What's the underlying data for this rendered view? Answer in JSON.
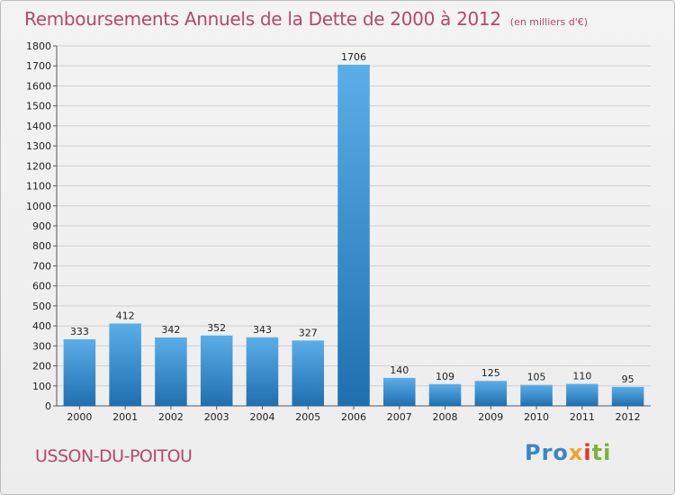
{
  "header": {
    "title": "Remboursements Annuels de la Dette de 2000 à 2012",
    "unit": "(en milliers d'€)"
  },
  "footer": {
    "commune": "USSON-DU-POITOU",
    "logo": "Proxiti"
  },
  "colors": {
    "title": "#b5486b",
    "bar_light": "#5aaee8",
    "bar_dark": "#1f6fb0",
    "grid": "#cfcfcf"
  },
  "chart_data": {
    "type": "bar",
    "title": "Remboursements Annuels de la Dette de 2000 à 2012",
    "subtitle": "(en milliers d'€)",
    "xlabel": "",
    "ylabel": "",
    "categories": [
      "2000",
      "2001",
      "2002",
      "2003",
      "2004",
      "2005",
      "2006",
      "2007",
      "2008",
      "2009",
      "2010",
      "2011",
      "2012"
    ],
    "values": [
      333,
      412,
      342,
      352,
      343,
      327,
      1706,
      140,
      109,
      125,
      105,
      110,
      95
    ],
    "ylim": [
      0,
      1800
    ],
    "yticks": [
      0,
      100,
      200,
      300,
      400,
      500,
      600,
      700,
      800,
      900,
      1000,
      1100,
      1200,
      1300,
      1400,
      1500,
      1600,
      1700,
      1800
    ],
    "grid": true,
    "legend": "none",
    "data_labels": true
  }
}
